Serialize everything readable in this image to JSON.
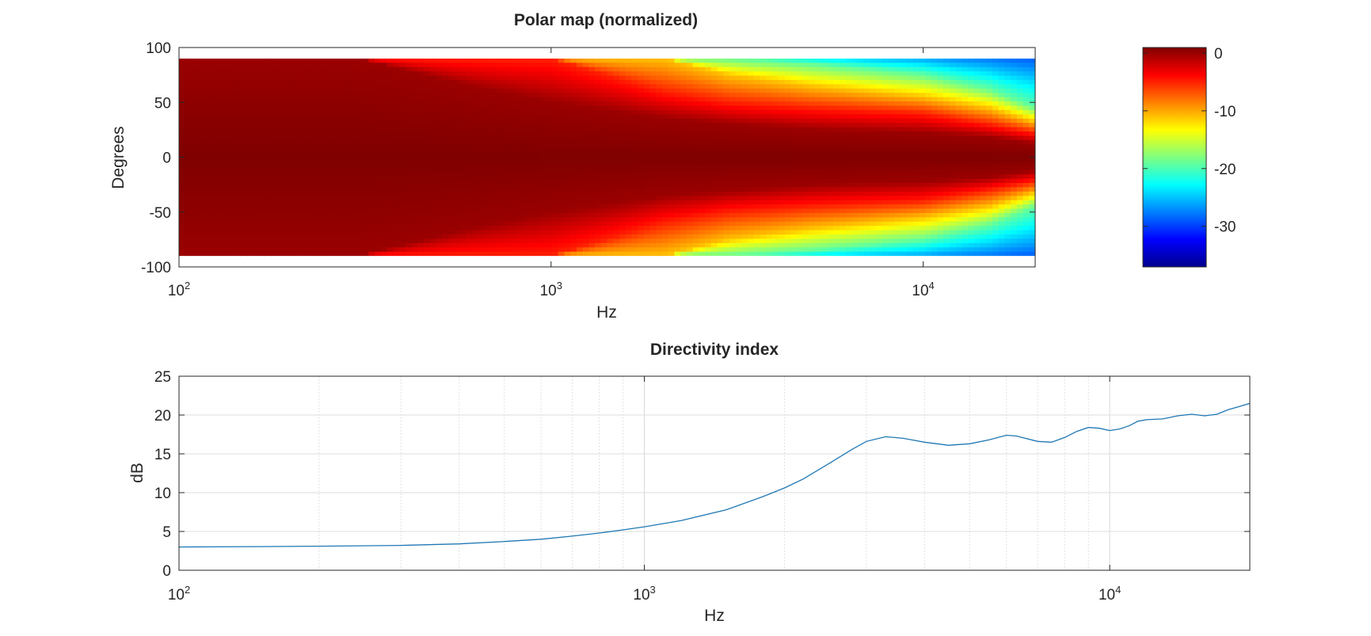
{
  "chart_data": [
    {
      "type": "heatmap",
      "title": "Polar map (normalized)",
      "xlabel": "Hz",
      "ylabel": "Degrees",
      "xscale": "log",
      "xlim": [
        100,
        20000
      ],
      "ylim": [
        -100,
        100
      ],
      "data_range_degrees": [
        -90,
        90
      ],
      "x_ticks": [
        {
          "base": "10",
          "exp": "2"
        },
        {
          "base": "10",
          "exp": "3"
        },
        {
          "base": "10",
          "exp": "4"
        }
      ],
      "y_ticks": [
        "100",
        "50",
        "0",
        "-50",
        "-100"
      ],
      "colormap": "jet",
      "colorbar": {
        "range": [
          -38,
          0
        ],
        "ticks": [
          "0",
          "-10",
          "-20",
          "-30"
        ],
        "placement": "right"
      },
      "contours_db_approx": [
        {
          "freq_hz": 100,
          "deg_minus1db": 90,
          "deg_minus6db": 90,
          "deg_minus12db": 90,
          "deg_minus20db": 90
        },
        {
          "freq_hz": 300,
          "deg_minus1db": 90,
          "deg_minus6db": 90,
          "deg_minus12db": 90,
          "deg_minus20db": 90
        },
        {
          "freq_hz": 600,
          "deg_minus1db": 65,
          "deg_minus6db": 90,
          "deg_minus12db": 90,
          "deg_minus20db": 90
        },
        {
          "freq_hz": 1000,
          "deg_minus1db": 50,
          "deg_minus6db": 90,
          "deg_minus12db": 90,
          "deg_minus20db": 90
        },
        {
          "freq_hz": 2000,
          "deg_minus1db": 35,
          "deg_minus6db": 60,
          "deg_minus12db": 90,
          "deg_minus20db": 90
        },
        {
          "freq_hz": 3000,
          "deg_minus1db": 30,
          "deg_minus6db": 50,
          "deg_minus12db": 75,
          "deg_minus20db": 90
        },
        {
          "freq_hz": 5000,
          "deg_minus1db": 25,
          "deg_minus6db": 45,
          "deg_minus12db": 65,
          "deg_minus20db": 85
        },
        {
          "freq_hz": 10000,
          "deg_minus1db": 22,
          "deg_minus6db": 40,
          "deg_minus12db": 55,
          "deg_minus20db": 75
        },
        {
          "freq_hz": 15000,
          "deg_minus1db": 18,
          "deg_minus6db": 30,
          "deg_minus12db": 45,
          "deg_minus20db": 62
        },
        {
          "freq_hz": 20000,
          "deg_minus1db": 12,
          "deg_minus6db": 22,
          "deg_minus12db": 32,
          "deg_minus20db": 45
        }
      ]
    },
    {
      "type": "line",
      "title": "Directivity index",
      "xlabel": "Hz",
      "ylabel": "dB",
      "xscale": "log",
      "xlim": [
        100,
        20000
      ],
      "ylim": [
        0,
        25
      ],
      "grid": true,
      "x_ticks": [
        {
          "base": "10",
          "exp": "2"
        },
        {
          "base": "10",
          "exp": "3"
        },
        {
          "base": "10",
          "exp": "4"
        }
      ],
      "y_ticks": [
        "0",
        "5",
        "10",
        "15",
        "20",
        "25"
      ],
      "line_color": "#1f77b4",
      "series": [
        {
          "x": [
            100,
            150,
            200,
            300,
            400,
            500,
            600,
            700,
            800,
            900,
            1000,
            1200,
            1500,
            1800,
            2000,
            2200,
            2500,
            2800,
            3000,
            3300,
            3600,
            4000,
            4500,
            5000,
            5500,
            6000,
            6300,
            7000,
            7500,
            8000,
            8500,
            9000,
            9500,
            10000,
            10500,
            11000,
            11500,
            12000,
            13000,
            14000,
            15000,
            16000,
            17000,
            18000,
            19000,
            20000
          ],
          "y": [
            3.0,
            3.05,
            3.1,
            3.2,
            3.4,
            3.7,
            4.0,
            4.4,
            4.8,
            5.2,
            5.6,
            6.4,
            7.8,
            9.5,
            10.6,
            11.8,
            13.8,
            15.6,
            16.6,
            17.2,
            17.0,
            16.5,
            16.1,
            16.3,
            16.8,
            17.4,
            17.3,
            16.6,
            16.5,
            17.1,
            17.9,
            18.4,
            18.3,
            18.0,
            18.2,
            18.6,
            19.2,
            19.4,
            19.5,
            19.9,
            20.1,
            19.9,
            20.1,
            20.7,
            21.1,
            21.5
          ]
        }
      ]
    }
  ]
}
